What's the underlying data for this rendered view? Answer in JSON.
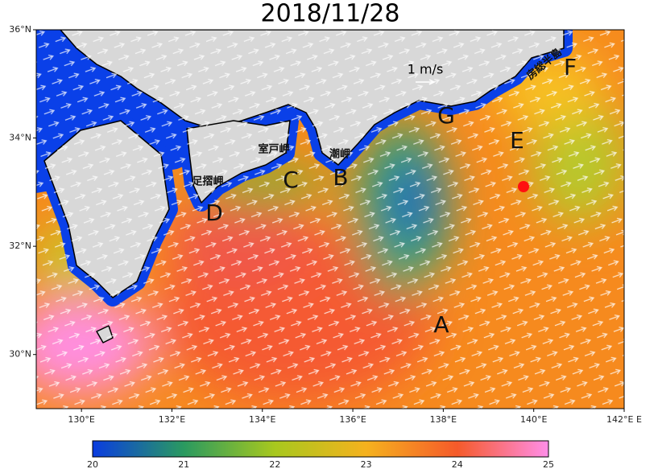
{
  "title": "2018/11/28",
  "map": {
    "lonlim": [
      129,
      142
    ],
    "latlim": [
      29,
      36
    ],
    "lon_ticks": [
      {
        "value": 130,
        "label": "130°E"
      },
      {
        "value": 132,
        "label": "132°E"
      },
      {
        "value": 134,
        "label": "134°E"
      },
      {
        "value": 136,
        "label": "136°E"
      },
      {
        "value": 138,
        "label": "138°E"
      },
      {
        "value": 140,
        "label": "140°E"
      },
      {
        "value": 142,
        "label": "142°E E"
      }
    ],
    "lat_ticks": [
      {
        "value": 30,
        "label": "30°N"
      },
      {
        "value": 32,
        "label": "32°N"
      },
      {
        "value": 34,
        "label": "34°N"
      },
      {
        "value": 36,
        "label": "36°N"
      }
    ],
    "markers": [
      "A",
      "B",
      "C",
      "D",
      "E",
      "F",
      "G"
    ],
    "places": [
      "室戸岬",
      "足摺岬",
      "潮岬",
      "房総半島"
    ],
    "vector_scale": "1 m/s"
  },
  "colorbar": {
    "range": [
      20,
      25
    ],
    "ticks": [
      20,
      21,
      22,
      23,
      24,
      25
    ]
  }
}
